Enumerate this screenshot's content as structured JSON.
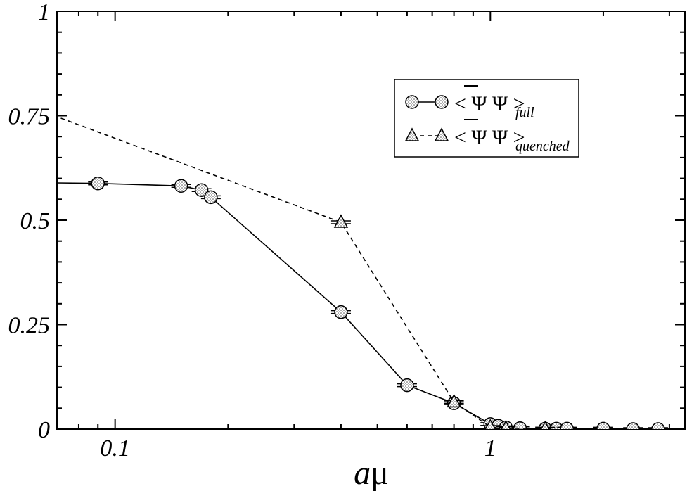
{
  "chart_data": {
    "type": "line",
    "xscale": "log",
    "xlim": [
      0.07,
      3.3
    ],
    "ylim": [
      0,
      1
    ],
    "grid": false,
    "legend_position": "top-right",
    "xlabel": {
      "italic": "a",
      "symbol": "μ"
    },
    "ylabel": "",
    "title": "",
    "x_ticks": [
      {
        "value": 0.1,
        "label": "0.1"
      },
      {
        "value": 1,
        "label": "1"
      }
    ],
    "x_minor_ticks": [
      0.08,
      0.09,
      0.2,
      0.3,
      0.4,
      0.5,
      0.6,
      0.7,
      0.8,
      0.9,
      2,
      3
    ],
    "y_ticks": [
      {
        "value": 0,
        "label": "0"
      },
      {
        "value": 0.25,
        "label": "0.25"
      },
      {
        "value": 0.5,
        "label": "0.5"
      },
      {
        "value": 0.75,
        "label": "0.75"
      },
      {
        "value": 1,
        "label": "1"
      }
    ],
    "y_minor_step": 0.05,
    "series": [
      {
        "id": "full",
        "legend_main": "< Ψ Ψ >",
        "legend_sub": "full",
        "marker": "circle",
        "line": "solid",
        "x": [
          0.06,
          0.09,
          0.15,
          0.17,
          0.18,
          0.4,
          0.6,
          0.8,
          1.0,
          1.05,
          1.1,
          1.2,
          1.4,
          1.5,
          1.6,
          2.0,
          2.4,
          2.8
        ],
        "y": [
          0.59,
          0.588,
          0.582,
          0.572,
          0.555,
          0.28,
          0.105,
          0.062,
          0.012,
          0.008,
          0.004,
          0.002,
          0.001,
          0.001,
          0.001,
          0.001,
          0.0,
          0.0
        ]
      },
      {
        "id": "quenched",
        "legend_main": "< Ψ Ψ >",
        "legend_sub": "quenched",
        "marker": "triangle",
        "line": "dashed",
        "x": [
          0.06,
          0.4,
          0.8,
          1.0,
          1.1,
          1.4
        ],
        "y": [
          0.77,
          0.495,
          0.065,
          0.005,
          0.002,
          0.001
        ]
      }
    ]
  }
}
